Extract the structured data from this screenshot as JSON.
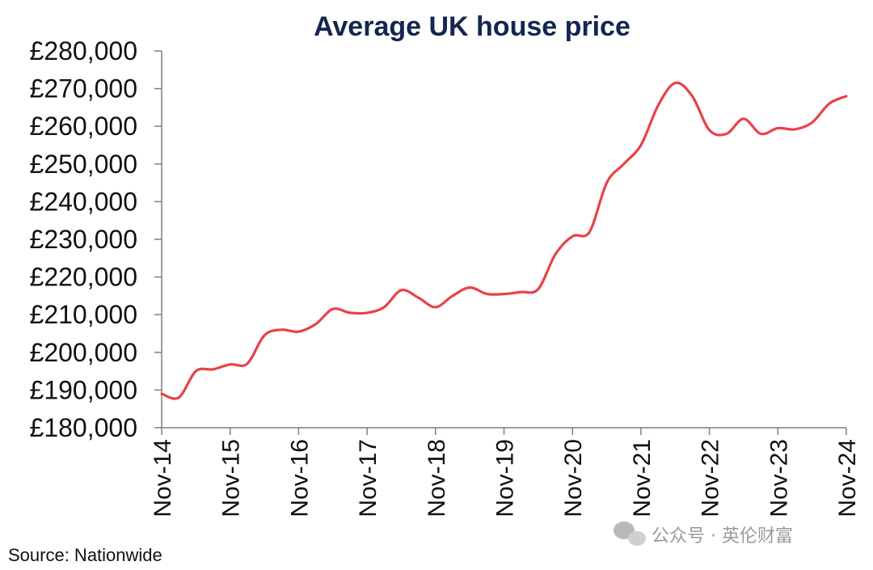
{
  "chart_data": {
    "type": "line",
    "title": "Average UK house price",
    "xlabel": "",
    "ylabel": "",
    "ylim": [
      180000,
      280000
    ],
    "y_ticks": [
      "£180,000",
      "£190,000",
      "£200,000",
      "£210,000",
      "£220,000",
      "£230,000",
      "£240,000",
      "£250,000",
      "£260,000",
      "£270,000",
      "£280,000"
    ],
    "x_ticks": [
      "Nov-14",
      "Nov-15",
      "Nov-16",
      "Nov-17",
      "Nov-18",
      "Nov-19",
      "Nov-20",
      "Nov-21",
      "Nov-22",
      "Nov-23",
      "Nov-24"
    ],
    "grid": false,
    "legend": "none",
    "line_color": "#e8424b",
    "series": [
      {
        "x": [
          0,
          0.25,
          0.5,
          0.75,
          1,
          1.25,
          1.5,
          1.75,
          2,
          2.25,
          2.5,
          2.75,
          3,
          3.25,
          3.5,
          3.75,
          4,
          4.25,
          4.5,
          4.75,
          5,
          5.25,
          5.5,
          5.75,
          6,
          6.25,
          6.5,
          6.75,
          7,
          7.25,
          7.5,
          7.75,
          8,
          8.25,
          8.5,
          8.75,
          9,
          9.25,
          9.5,
          9.75,
          10
        ],
        "values": [
          189000,
          188000,
          195000,
          195500,
          196800,
          197000,
          204500,
          206000,
          205500,
          207500,
          211500,
          210500,
          210500,
          212000,
          216500,
          214500,
          212000,
          215000,
          217200,
          215500,
          215500,
          216000,
          216800,
          226000,
          230800,
          232000,
          245000,
          250000,
          255000,
          265500,
          271500,
          268000,
          259000,
          258000,
          262000,
          258000,
          259500,
          259200,
          261000,
          266000,
          268000
        ]
      }
    ],
    "source": "Source: Nationwide",
    "watermark": "公众号 · 英伦财富"
  }
}
